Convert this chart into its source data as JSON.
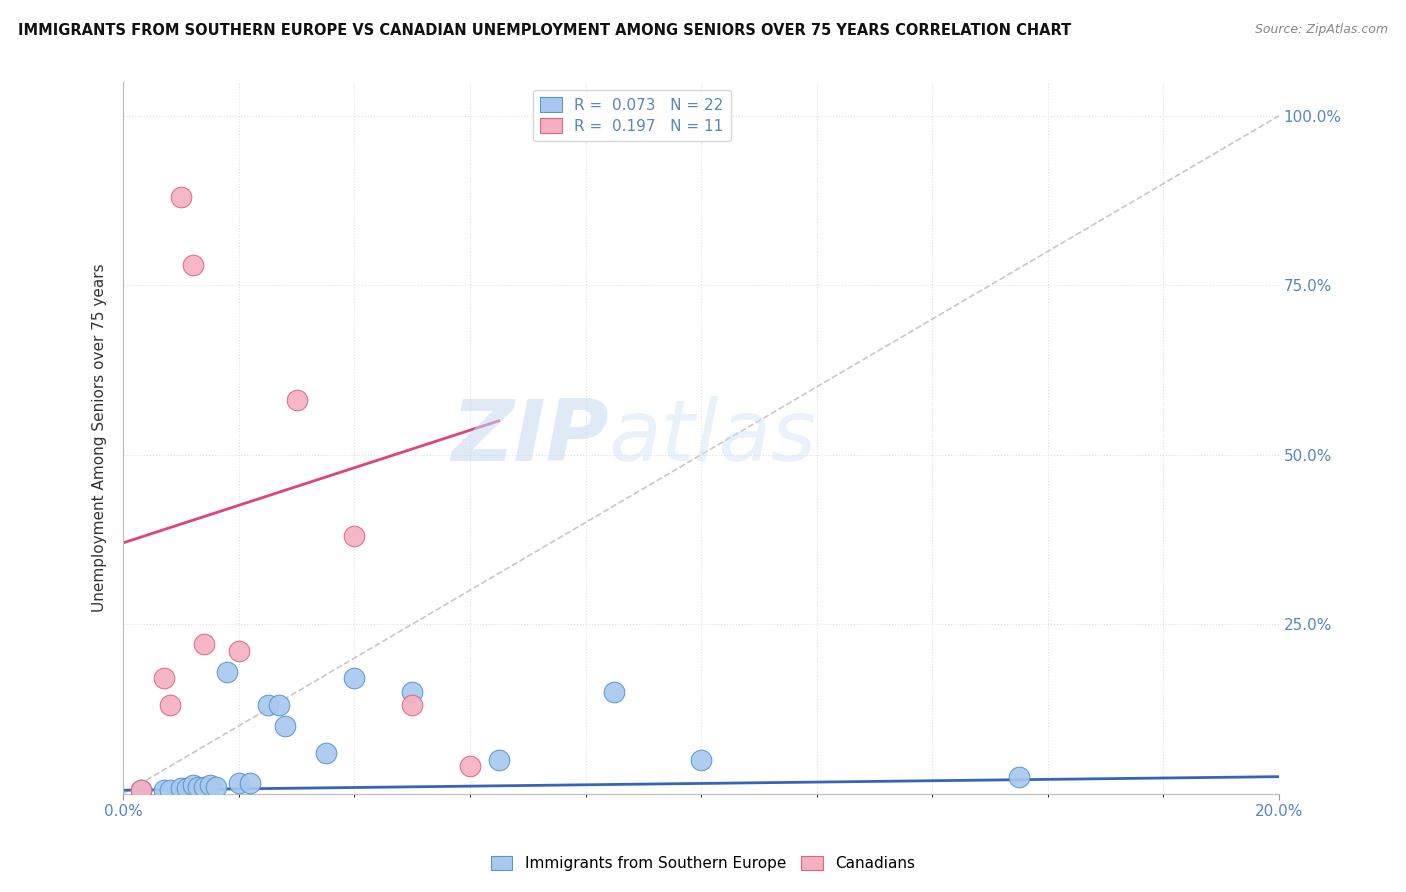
{
  "title": "IMMIGRANTS FROM SOUTHERN EUROPE VS CANADIAN UNEMPLOYMENT AMONG SENIORS OVER 75 YEARS CORRELATION CHART",
  "source": "Source: ZipAtlas.com",
  "ylabel": "Unemployment Among Seniors over 75 years",
  "xlim": [
    0.0,
    0.2
  ],
  "ylim": [
    0.0,
    1.05
  ],
  "ytick_labels": [
    "25.0%",
    "50.0%",
    "75.0%",
    "100.0%"
  ],
  "ytick_values": [
    0.25,
    0.5,
    0.75,
    1.0
  ],
  "blue_scatter_x": [
    0.003,
    0.007,
    0.008,
    0.01,
    0.011,
    0.012,
    0.013,
    0.014,
    0.015,
    0.016,
    0.018,
    0.02,
    0.022,
    0.025,
    0.027,
    0.028,
    0.035,
    0.04,
    0.05,
    0.065,
    0.085,
    0.1,
    0.155
  ],
  "blue_scatter_y": [
    0.005,
    0.005,
    0.005,
    0.008,
    0.008,
    0.012,
    0.01,
    0.01,
    0.012,
    0.01,
    0.18,
    0.015,
    0.015,
    0.13,
    0.13,
    0.1,
    0.06,
    0.17,
    0.15,
    0.05,
    0.15,
    0.05,
    0.025
  ],
  "pink_scatter_x": [
    0.003,
    0.007,
    0.008,
    0.01,
    0.012,
    0.014,
    0.02,
    0.03,
    0.04,
    0.05,
    0.06
  ],
  "pink_scatter_y": [
    0.005,
    0.17,
    0.13,
    0.88,
    0.78,
    0.22,
    0.21,
    0.58,
    0.38,
    0.13,
    0.04
  ],
  "blue_line_x": [
    0.0,
    0.2
  ],
  "blue_line_y": [
    0.005,
    0.025
  ],
  "pink_line_x": [
    0.0,
    0.065
  ],
  "pink_line_y": [
    0.37,
    0.55
  ],
  "gray_line_x": [
    0.0,
    0.2
  ],
  "gray_line_y": [
    0.0,
    1.0
  ],
  "blue_color": "#a8c8f0",
  "blue_edge": "#5599cc",
  "pink_color": "#f4b0c0",
  "pink_edge": "#dd6688",
  "blue_line_color": "#3366bb",
  "pink_line_color": "#dd4477",
  "gray_line_color": "#c8c8c8",
  "watermark_zip": "ZIP",
  "watermark_atlas": "atlas",
  "background_color": "#ffffff",
  "grid_color": "#e0e0e0",
  "tick_color": "#5588bb",
  "title_color": "#111111",
  "source_color": "#888888",
  "ylabel_color": "#333333"
}
